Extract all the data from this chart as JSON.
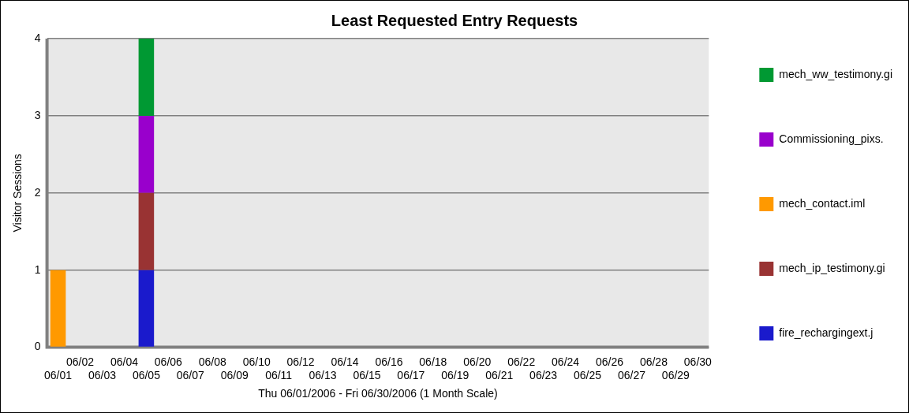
{
  "chart_data": {
    "type": "bar",
    "title": "Least Requested Entry Requests",
    "xlabel": "Thu 06/01/2006 - Fri 06/30/2006 (1 Month Scale)",
    "ylabel": "Visitor Sessions",
    "categories": [
      "06/01",
      "06/02",
      "06/03",
      "06/04",
      "06/05",
      "06/06",
      "06/07",
      "06/08",
      "06/09",
      "06/10",
      "06/11",
      "06/12",
      "06/13",
      "06/14",
      "06/15",
      "06/16",
      "06/17",
      "06/18",
      "06/19",
      "06/20",
      "06/21",
      "06/22",
      "06/23",
      "06/24",
      "06/25",
      "06/26",
      "06/27",
      "06/28",
      "06/29",
      "06/30"
    ],
    "stacked": true,
    "ylim": [
      0,
      4
    ],
    "yticks": [
      0,
      1,
      2,
      3,
      4
    ],
    "grid": "y",
    "legend": "right",
    "series": [
      {
        "name": "fire_rechargingext.j",
        "color": "#1a1acc",
        "values": [
          0,
          0,
          0,
          0,
          1,
          0,
          0,
          0,
          0,
          0,
          0,
          0,
          0,
          0,
          0,
          0,
          0,
          0,
          0,
          0,
          0,
          0,
          0,
          0,
          0,
          0,
          0,
          0,
          0,
          0
        ]
      },
      {
        "name": "mech_ip_testimony.gi",
        "color": "#993333",
        "values": [
          0,
          0,
          0,
          0,
          1,
          0,
          0,
          0,
          0,
          0,
          0,
          0,
          0,
          0,
          0,
          0,
          0,
          0,
          0,
          0,
          0,
          0,
          0,
          0,
          0,
          0,
          0,
          0,
          0,
          0
        ]
      },
      {
        "name": "mech_contact.iml",
        "color": "#ff9900",
        "values": [
          1,
          0,
          0,
          0,
          0,
          0,
          0,
          0,
          0,
          0,
          0,
          0,
          0,
          0,
          0,
          0,
          0,
          0,
          0,
          0,
          0,
          0,
          0,
          0,
          0,
          0,
          0,
          0,
          0,
          0
        ]
      },
      {
        "name": "Commissioning_pixs.",
        "color": "#9900cc",
        "values": [
          0,
          0,
          0,
          0,
          1,
          0,
          0,
          0,
          0,
          0,
          0,
          0,
          0,
          0,
          0,
          0,
          0,
          0,
          0,
          0,
          0,
          0,
          0,
          0,
          0,
          0,
          0,
          0,
          0,
          0
        ]
      },
      {
        "name": "mech_ww_testimony.gi",
        "color": "#009933",
        "values": [
          0,
          0,
          0,
          0,
          1,
          0,
          0,
          0,
          0,
          0,
          0,
          0,
          0,
          0,
          0,
          0,
          0,
          0,
          0,
          0,
          0,
          0,
          0,
          0,
          0,
          0,
          0,
          0,
          0,
          0
        ]
      }
    ]
  }
}
